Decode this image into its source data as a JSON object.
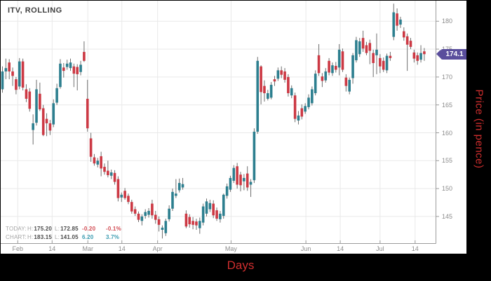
{
  "title": "ITV, ROLLING",
  "price_badge": "174.1",
  "axis_titles": {
    "x": "Days",
    "y": "Price (in pence)"
  },
  "stats": {
    "today": {
      "label": "TODAY:",
      "h_prefix": "H:",
      "h": "175.20",
      "l_prefix": "L:",
      "l": "172.85",
      "change": "-0.20",
      "change_pct": "-0.1%"
    },
    "chart": {
      "label": "CHART:",
      "h_prefix": "H:",
      "h": "183.15",
      "l_prefix": "L:",
      "l": "141.05",
      "change": "6.20",
      "change_pct": "3.7%"
    }
  },
  "colors": {
    "up": "#2d7f8f",
    "down": "#cc3944",
    "wick": "#6e6e6e",
    "grid": "#e9e9e9",
    "axis": "#9b9b9b",
    "tick_label": "#8c8c8c",
    "badge": "#5a4e9c",
    "accent_red": "#cf2e2e",
    "positive": "#3a9bb0",
    "negative": "#d14b52"
  },
  "chart_data": {
    "type": "candlestick",
    "title": "ITV, ROLLING",
    "xlabel": "Days",
    "ylabel": "Price (in pence)",
    "ylim": [
      139.5,
      183.7
    ],
    "grid": true,
    "last_price": 174.1,
    "y_ticks": [
      145,
      150,
      155,
      160,
      165,
      170,
      175,
      180
    ],
    "x_ticks": [
      {
        "label": "Feb",
        "i": 4.5
      },
      {
        "label": "14",
        "i": 14.6
      },
      {
        "label": "Mar",
        "i": 25.1
      },
      {
        "label": "14",
        "i": 35.1
      },
      {
        "label": "Apr",
        "i": 45.6
      },
      {
        "label": "May",
        "i": 67.2
      },
      {
        "label": "Jun",
        "i": 89.2
      },
      {
        "label": "14",
        "i": 99.3
      },
      {
        "label": "Jul",
        "i": 111.0
      },
      {
        "label": "14",
        "i": 121.3
      }
    ],
    "ohlc_note": "each candle is [open, high, low, close] in pence, one trading day",
    "candles": [
      [
        167.8,
        171.9,
        167.2,
        171.0
      ],
      [
        171.0,
        173.3,
        169.6,
        171.6
      ],
      [
        172.6,
        173.2,
        169.6,
        171.0
      ],
      [
        171.0,
        171.7,
        168.4,
        170.2
      ],
      [
        169.6,
        170.0,
        166.9,
        167.7
      ],
      [
        168.3,
        173.4,
        167.8,
        172.8
      ],
      [
        172.8,
        173.3,
        167.6,
        168.1
      ],
      [
        167.8,
        168.7,
        165.5,
        166.1
      ],
      [
        167.4,
        168.0,
        163.8,
        164.3
      ],
      [
        160.5,
        163.3,
        157.9,
        161.7
      ],
      [
        161.8,
        169.5,
        161.3,
        167.8
      ],
      [
        167.0,
        169.0,
        163.9,
        164.2
      ],
      [
        164.4,
        165.0,
        159.4,
        159.6
      ],
      [
        162.5,
        163.5,
        159.4,
        161.7
      ],
      [
        161.7,
        162.3,
        159.6,
        160.4
      ],
      [
        161.5,
        166.0,
        161.0,
        165.3
      ],
      [
        165.4,
        168.8,
        165.0,
        168.0
      ],
      [
        168.2,
        173.2,
        167.9,
        172.4
      ],
      [
        171.7,
        172.5,
        169.9,
        171.1
      ],
      [
        171.8,
        173.1,
        171.3,
        172.4
      ],
      [
        171.6,
        173.3,
        171.1,
        172.6
      ],
      [
        171.9,
        172.4,
        168.2,
        170.6
      ],
      [
        171.8,
        172.3,
        167.6,
        170.5
      ],
      [
        170.9,
        172.9,
        170.3,
        172.2
      ],
      [
        174.5,
        176.4,
        172.7,
        172.9
      ],
      [
        166.1,
        169.5,
        160.2,
        160.8
      ],
      [
        159.0,
        160.0,
        154.8,
        155.7
      ],
      [
        155.6,
        156.2,
        154.1,
        154.5
      ],
      [
        154.3,
        155.5,
        153.8,
        155.0
      ],
      [
        155.8,
        156.6,
        152.2,
        153.6
      ],
      [
        153.9,
        154.5,
        152.5,
        153.0
      ],
      [
        153.2,
        155.0,
        152.0,
        152.4
      ],
      [
        152.3,
        153.4,
        151.7,
        152.9
      ],
      [
        152.8,
        153.3,
        150.7,
        151.2
      ],
      [
        151.7,
        152.2,
        147.7,
        148.3
      ],
      [
        148.4,
        149.3,
        147.6,
        148.9
      ],
      [
        149.6,
        150.1,
        148.0,
        148.3
      ],
      [
        148.7,
        149.1,
        147.2,
        147.6
      ],
      [
        147.6,
        148.0,
        145.5,
        145.9
      ],
      [
        146.3,
        146.8,
        145.1,
        145.5
      ],
      [
        145.5,
        145.9,
        144.0,
        144.4
      ],
      [
        144.2,
        145.4,
        143.4,
        145.0
      ],
      [
        145.1,
        146.3,
        144.6,
        145.8
      ],
      [
        145.3,
        146.5,
        144.8,
        146.0
      ],
      [
        147.3,
        148.0,
        144.6,
        145.2
      ],
      [
        145.3,
        146.0,
        143.7,
        144.4
      ],
      [
        144.5,
        145.0,
        142.3,
        143.5
      ],
      [
        142.6,
        143.4,
        141.05,
        143.0
      ],
      [
        142.0,
        144.6,
        141.5,
        144.2
      ],
      [
        144.5,
        147.0,
        144.1,
        146.4
      ],
      [
        146.4,
        150.0,
        146.0,
        149.4
      ],
      [
        148.7,
        151.7,
        148.3,
        149.1
      ],
      [
        149.7,
        151.8,
        149.3,
        151.0
      ],
      [
        150.2,
        151.9,
        149.8,
        150.8
      ],
      [
        145.5,
        146.1,
        142.9,
        143.2
      ],
      [
        144.9,
        145.4,
        143.0,
        143.6
      ],
      [
        144.2,
        144.9,
        142.7,
        143.5
      ],
      [
        144.1,
        144.6,
        142.6,
        143.4
      ],
      [
        142.9,
        144.8,
        141.9,
        144.2
      ],
      [
        143.9,
        147.3,
        143.4,
        146.8
      ],
      [
        145.5,
        148.2,
        145.0,
        147.7
      ],
      [
        146.3,
        148.0,
        145.8,
        147.4
      ],
      [
        147.3,
        147.9,
        144.7,
        145.2
      ],
      [
        146.1,
        146.6,
        144.2,
        144.6
      ],
      [
        144.5,
        146.0,
        143.9,
        145.5
      ],
      [
        145.1,
        149.1,
        144.6,
        148.9
      ],
      [
        148.7,
        150.9,
        148.2,
        150.4
      ],
      [
        149.8,
        152.3,
        149.4,
        151.9
      ],
      [
        151.4,
        154.2,
        151.0,
        153.7
      ],
      [
        154.0,
        154.6,
        150.0,
        150.7
      ],
      [
        152.5,
        153.0,
        149.5,
        150.6
      ],
      [
        151.3,
        152.6,
        149.7,
        151.9
      ],
      [
        152.7,
        154.0,
        149.6,
        150.2
      ],
      [
        150.7,
        151.7,
        148.5,
        151.2
      ],
      [
        151.5,
        160.8,
        151.0,
        160.2
      ],
      [
        160.2,
        173.6,
        159.8,
        172.9
      ],
      [
        171.9,
        172.1,
        165.1,
        167.3
      ],
      [
        168.4,
        169.4,
        165.6,
        167.1
      ],
      [
        166.1,
        167.7,
        165.8,
        167.1
      ],
      [
        166.3,
        169.1,
        166.0,
        168.6
      ],
      [
        169.6,
        170.2,
        168.4,
        169.2
      ],
      [
        169.7,
        171.7,
        169.3,
        171.2
      ],
      [
        171.2,
        171.9,
        169.8,
        170.4
      ],
      [
        171.0,
        171.6,
        169.0,
        169.5
      ],
      [
        170.0,
        170.5,
        166.5,
        167.1
      ],
      [
        166.7,
        168.5,
        166.2,
        168.0
      ],
      [
        166.7,
        167.2,
        161.9,
        162.5
      ],
      [
        162.2,
        163.9,
        161.5,
        163.1
      ],
      [
        164.4,
        165.1,
        162.4,
        162.9
      ],
      [
        163.8,
        165.3,
        163.4,
        164.8
      ],
      [
        164.6,
        166.9,
        164.2,
        166.3
      ],
      [
        165.3,
        168.3,
        164.9,
        167.8
      ],
      [
        167.1,
        171.2,
        166.7,
        170.6
      ],
      [
        173.9,
        175.9,
        170.2,
        170.7
      ],
      [
        170.1,
        170.7,
        168.2,
        169.3
      ],
      [
        169.4,
        171.6,
        169.0,
        171.0
      ],
      [
        172.9,
        173.4,
        170.3,
        170.8
      ],
      [
        170.7,
        172.6,
        170.2,
        172.1
      ],
      [
        172.0,
        172.7,
        170.8,
        171.3
      ],
      [
        171.7,
        175.9,
        170.3,
        174.9
      ],
      [
        174.6,
        175.1,
        170.9,
        171.3
      ],
      [
        169.9,
        170.5,
        167.4,
        168.4
      ],
      [
        167.4,
        169.9,
        166.9,
        169.5
      ],
      [
        169.8,
        174.3,
        168.8,
        173.9
      ],
      [
        173.0,
        177.2,
        172.6,
        176.6
      ],
      [
        174.1,
        177.0,
        173.6,
        176.4
      ],
      [
        177.0,
        178.3,
        174.5,
        175.1
      ],
      [
        175.7,
        176.3,
        173.9,
        174.3
      ],
      [
        176.1,
        176.7,
        172.3,
        174.7
      ],
      [
        174.3,
        174.9,
        170.0,
        172.5
      ],
      [
        173.9,
        177.8,
        170.5,
        174.9
      ],
      [
        173.4,
        174.1,
        170.7,
        171.9
      ],
      [
        172.9,
        173.5,
        170.9,
        171.3
      ],
      [
        171.2,
        174.2,
        170.7,
        173.8
      ],
      [
        173.8,
        174.5,
        172.9,
        173.4
      ],
      [
        177.2,
        183.15,
        176.6,
        181.6
      ],
      [
        181.4,
        182.3,
        178.3,
        179.2
      ],
      [
        179.4,
        180.8,
        178.8,
        180.3
      ],
      [
        178.2,
        178.9,
        176.5,
        177.1
      ],
      [
        177.3,
        177.8,
        171.1,
        175.8
      ],
      [
        176.5,
        177.0,
        175.0,
        175.4
      ],
      [
        174.4,
        174.9,
        172.6,
        173.3
      ],
      [
        173.9,
        174.4,
        172.2,
        172.9
      ],
      [
        173.1,
        175.7,
        172.6,
        174.3
      ],
      [
        174.6,
        175.2,
        172.9,
        174.1
      ]
    ]
  }
}
